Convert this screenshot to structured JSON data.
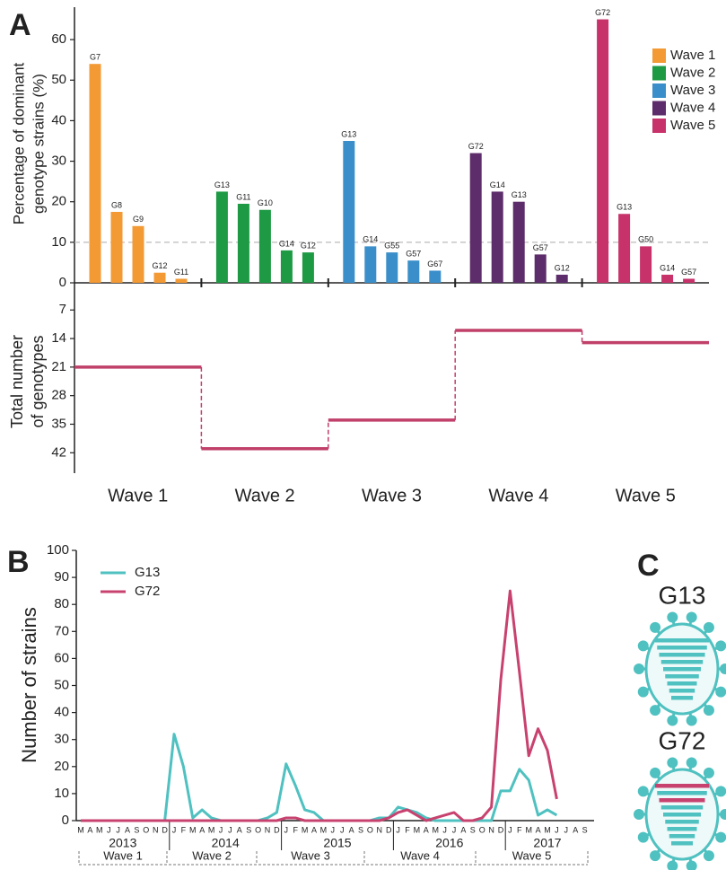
{
  "chart_data": [
    {
      "type": "bar",
      "panel": "A",
      "ylabel": [
        "Percentage of dominant",
        "genotype strains (%)"
      ],
      "ylim": [
        0,
        68
      ],
      "yticks": [
        0,
        10,
        20,
        30,
        40,
        50,
        60
      ],
      "reference_line": 10,
      "legend": "upper right",
      "groups": [
        {
          "name": "Wave 1",
          "color": "#f39a35",
          "labels": [
            "G7",
            "G8",
            "G9",
            "G12",
            "G11"
          ],
          "values": [
            54,
            17.5,
            14,
            2.5,
            1
          ]
        },
        {
          "name": "Wave 2",
          "color": "#1e9a44",
          "labels": [
            "G13",
            "G11",
            "G10",
            "G14",
            "G12"
          ],
          "values": [
            22.5,
            19.5,
            18,
            8,
            7.5
          ]
        },
        {
          "name": "Wave 3",
          "color": "#3a8fca",
          "labels": [
            "G13",
            "G14",
            "G55",
            "G57",
            "G67"
          ],
          "values": [
            35,
            9,
            7.5,
            5.5,
            3
          ]
        },
        {
          "name": "Wave 4",
          "color": "#5d2c6a",
          "labels": [
            "G72",
            "G14",
            "G13",
            "G57",
            "G12"
          ],
          "values": [
            32,
            22.5,
            20,
            7,
            2
          ]
        },
        {
          "name": "Wave 5",
          "color": "#c8326a",
          "labels": [
            "G72",
            "G13",
            "G50",
            "G14",
            "G57"
          ],
          "values": [
            65,
            17,
            9,
            2,
            1
          ]
        }
      ]
    },
    {
      "type": "step",
      "ylabel": [
        "Total number",
        "of genotypes"
      ],
      "ylim": [
        1,
        47
      ],
      "inverted": true,
      "yticks": [
        7,
        14,
        21,
        28,
        35,
        42
      ],
      "categories": [
        "Wave 1",
        "Wave 2",
        "Wave 3",
        "Wave 4",
        "Wave 5"
      ],
      "values": [
        21,
        41,
        34,
        12,
        15
      ],
      "color": "#c0406a"
    },
    {
      "type": "line",
      "panel": "B",
      "ylabel": "Number of strains",
      "ylim": [
        0,
        100
      ],
      "yticks": [
        0,
        10,
        20,
        30,
        40,
        50,
        60,
        70,
        80,
        90,
        100
      ],
      "legend": "upper left",
      "x": [
        "M",
        "A",
        "M",
        "J",
        "J",
        "A",
        "S",
        "O",
        "N",
        "D",
        "J",
        "F",
        "M",
        "A",
        "M",
        "J",
        "J",
        "A",
        "S",
        "O",
        "N",
        "D",
        "J",
        "F",
        "M",
        "A",
        "M",
        "J",
        "J",
        "A",
        "S",
        "O",
        "N",
        "D",
        "J",
        "F",
        "M",
        "A",
        "M",
        "J",
        "J",
        "A",
        "S",
        "O",
        "N",
        "D",
        "J",
        "F",
        "M",
        "A",
        "M",
        "J",
        "J",
        "A",
        "S"
      ],
      "years": [
        "2013",
        "2014",
        "2015",
        "2016",
        "2017"
      ],
      "waves": [
        "Wave 1",
        "Wave 2",
        "Wave 3",
        "Wave 4",
        "Wave 5"
      ],
      "series": [
        {
          "name": "G13",
          "color": "#4fc1c0",
          "values": [
            0,
            0,
            0,
            0,
            0,
            0,
            0,
            0,
            0,
            0,
            32,
            20,
            1,
            4,
            1,
            0,
            0,
            0,
            0,
            0,
            1,
            3,
            21,
            13,
            4,
            3,
            0,
            0,
            0,
            0,
            0,
            0,
            1,
            1,
            5,
            4,
            3,
            1,
            0,
            0,
            0,
            0,
            0,
            0,
            0,
            11,
            11,
            19,
            15,
            2,
            4,
            2,
            null,
            null,
            null
          ]
        },
        {
          "name": "G72",
          "color": "#c8426f",
          "values": [
            0,
            0,
            0,
            0,
            0,
            0,
            0,
            0,
            0,
            0,
            0,
            0,
            0,
            0,
            0,
            0,
            0,
            0,
            0,
            0,
            0,
            0,
            1,
            1,
            0,
            0,
            0,
            0,
            0,
            0,
            0,
            0,
            0,
            1,
            3,
            4,
            2,
            0,
            1,
            2,
            3,
            0,
            0,
            1,
            5,
            52,
            85,
            55,
            24,
            34,
            26,
            8,
            null,
            null,
            null
          ]
        }
      ]
    }
  ],
  "diagram": {
    "panel": "C",
    "viruses": [
      {
        "label": "G13"
      },
      {
        "label": "G72"
      }
    ]
  }
}
